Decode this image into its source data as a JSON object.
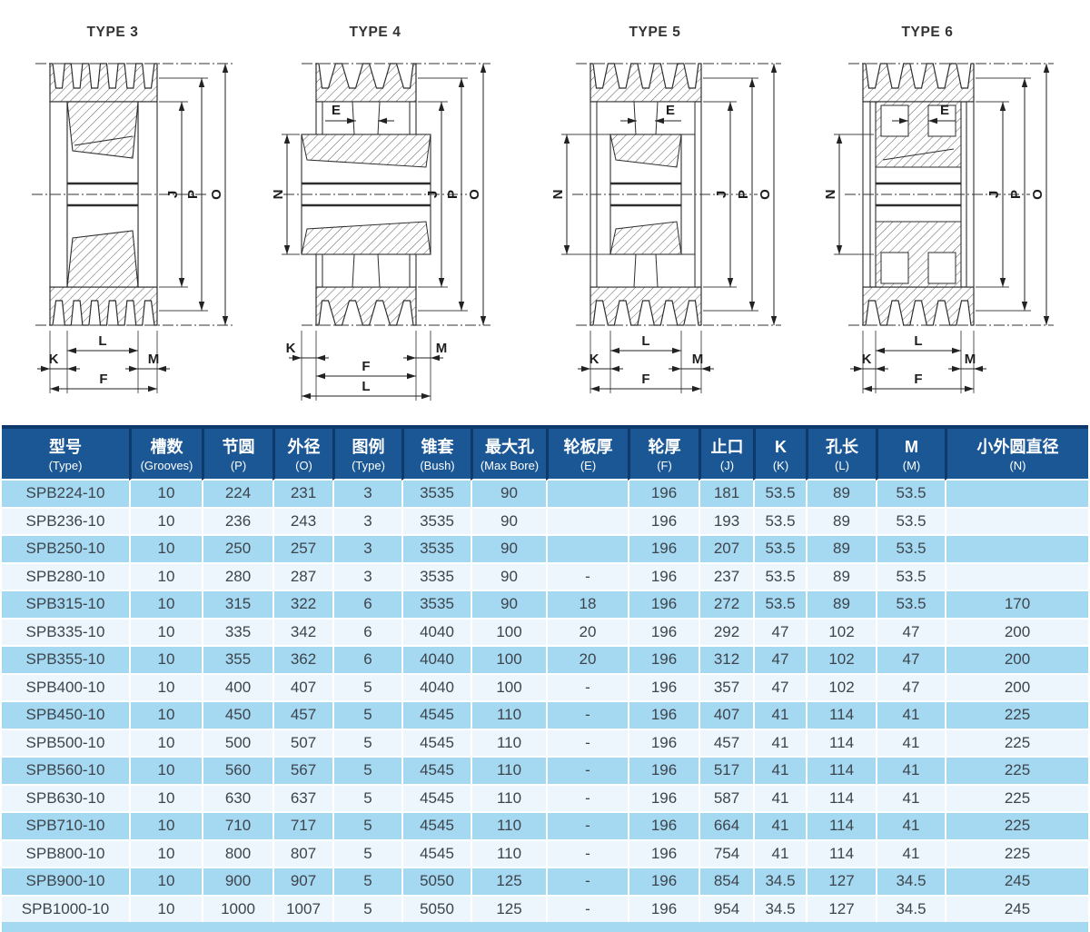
{
  "colors": {
    "header_bg": "#1b5795",
    "header_line": "#0e3a6b",
    "row_blue": "#a5d8f1",
    "row_light": "#ecf6fc",
    "row_text": "#3e444b",
    "diagram_line": "#2e2e2e"
  },
  "diagrams": [
    {
      "title": "TYPE 3",
      "dims": {
        "J": "J",
        "P": "P",
        "O": "O",
        "L": "L",
        "K": "K",
        "M": "M",
        "F": "F"
      }
    },
    {
      "title": "TYPE 4",
      "dims": {
        "E": "E",
        "N": "N",
        "J": "J",
        "P": "P",
        "O": "O",
        "K": "K",
        "M": "M",
        "F": "F",
        "L": "L"
      }
    },
    {
      "title": "TYPE 5",
      "dims": {
        "E": "E",
        "N": "N",
        "J": "J",
        "P": "P",
        "O": "O",
        "L": "L",
        "K": "K",
        "M": "M",
        "F": "F"
      }
    },
    {
      "title": "TYPE 6",
      "dims": {
        "E": "E",
        "N": "N",
        "J": "J",
        "P": "P",
        "O": "O",
        "L": "L",
        "K": "K",
        "M": "M",
        "F": "F"
      }
    }
  ],
  "table": {
    "columns": [
      {
        "zh": "型号",
        "en": "(Type)"
      },
      {
        "zh": "槽数",
        "en": "(Grooves)"
      },
      {
        "zh": "节圆",
        "en": "(P)"
      },
      {
        "zh": "外径",
        "en": "(O)"
      },
      {
        "zh": "图例",
        "en": "(Type)"
      },
      {
        "zh": "锥套",
        "en": "(Bush)"
      },
      {
        "zh": "最大孔",
        "en": "(Max Bore)"
      },
      {
        "zh": "轮板厚",
        "en": "(E)"
      },
      {
        "zh": "轮厚",
        "en": "(F)"
      },
      {
        "zh": "止口",
        "en": "(J)"
      },
      {
        "zh": "K",
        "en": "(K)"
      },
      {
        "zh": "孔长",
        "en": "(L)"
      },
      {
        "zh": "M",
        "en": "(M)"
      },
      {
        "zh": "小外圆直径",
        "en": "(N)"
      }
    ],
    "rows": [
      [
        "SPB224-10",
        "10",
        "224",
        "231",
        "3",
        "3535",
        "90",
        "",
        "196",
        "181",
        "53.5",
        "89",
        "53.5",
        ""
      ],
      [
        "SPB236-10",
        "10",
        "236",
        "243",
        "3",
        "3535",
        "90",
        "",
        "196",
        "193",
        "53.5",
        "89",
        "53.5",
        ""
      ],
      [
        "SPB250-10",
        "10",
        "250",
        "257",
        "3",
        "3535",
        "90",
        "",
        "196",
        "207",
        "53.5",
        "89",
        "53.5",
        ""
      ],
      [
        "SPB280-10",
        "10",
        "280",
        "287",
        "3",
        "3535",
        "90",
        "-",
        "196",
        "237",
        "53.5",
        "89",
        "53.5",
        ""
      ],
      [
        "SPB315-10",
        "10",
        "315",
        "322",
        "6",
        "3535",
        "90",
        "18",
        "196",
        "272",
        "53.5",
        "89",
        "53.5",
        "170"
      ],
      [
        "SPB335-10",
        "10",
        "335",
        "342",
        "6",
        "4040",
        "100",
        "20",
        "196",
        "292",
        "47",
        "102",
        "47",
        "200"
      ],
      [
        "SPB355-10",
        "10",
        "355",
        "362",
        "6",
        "4040",
        "100",
        "20",
        "196",
        "312",
        "47",
        "102",
        "47",
        "200"
      ],
      [
        "SPB400-10",
        "10",
        "400",
        "407",
        "5",
        "4040",
        "100",
        "-",
        "196",
        "357",
        "47",
        "102",
        "47",
        "200"
      ],
      [
        "SPB450-10",
        "10",
        "450",
        "457",
        "5",
        "4545",
        "110",
        "-",
        "196",
        "407",
        "41",
        "114",
        "41",
        "225"
      ],
      [
        "SPB500-10",
        "10",
        "500",
        "507",
        "5",
        "4545",
        "110",
        "-",
        "196",
        "457",
        "41",
        "114",
        "41",
        "225"
      ],
      [
        "SPB560-10",
        "10",
        "560",
        "567",
        "5",
        "4545",
        "110",
        "-",
        "196",
        "517",
        "41",
        "114",
        "41",
        "225"
      ],
      [
        "SPB630-10",
        "10",
        "630",
        "637",
        "5",
        "4545",
        "110",
        "-",
        "196",
        "587",
        "41",
        "114",
        "41",
        "225"
      ],
      [
        "SPB710-10",
        "10",
        "710",
        "717",
        "5",
        "4545",
        "110",
        "-",
        "196",
        "664",
        "41",
        "114",
        "41",
        "225"
      ],
      [
        "SPB800-10",
        "10",
        "800",
        "807",
        "5",
        "4545",
        "110",
        "-",
        "196",
        "754",
        "41",
        "114",
        "41",
        "225"
      ],
      [
        "SPB900-10",
        "10",
        "900",
        "907",
        "5",
        "5050",
        "125",
        "-",
        "196",
        "854",
        "34.5",
        "127",
        "34.5",
        "245"
      ],
      [
        "SPB1000-10",
        "10",
        "1000",
        "1007",
        "5",
        "5050",
        "125",
        "-",
        "196",
        "954",
        "34.5",
        "127",
        "34.5",
        "245"
      ]
    ]
  }
}
